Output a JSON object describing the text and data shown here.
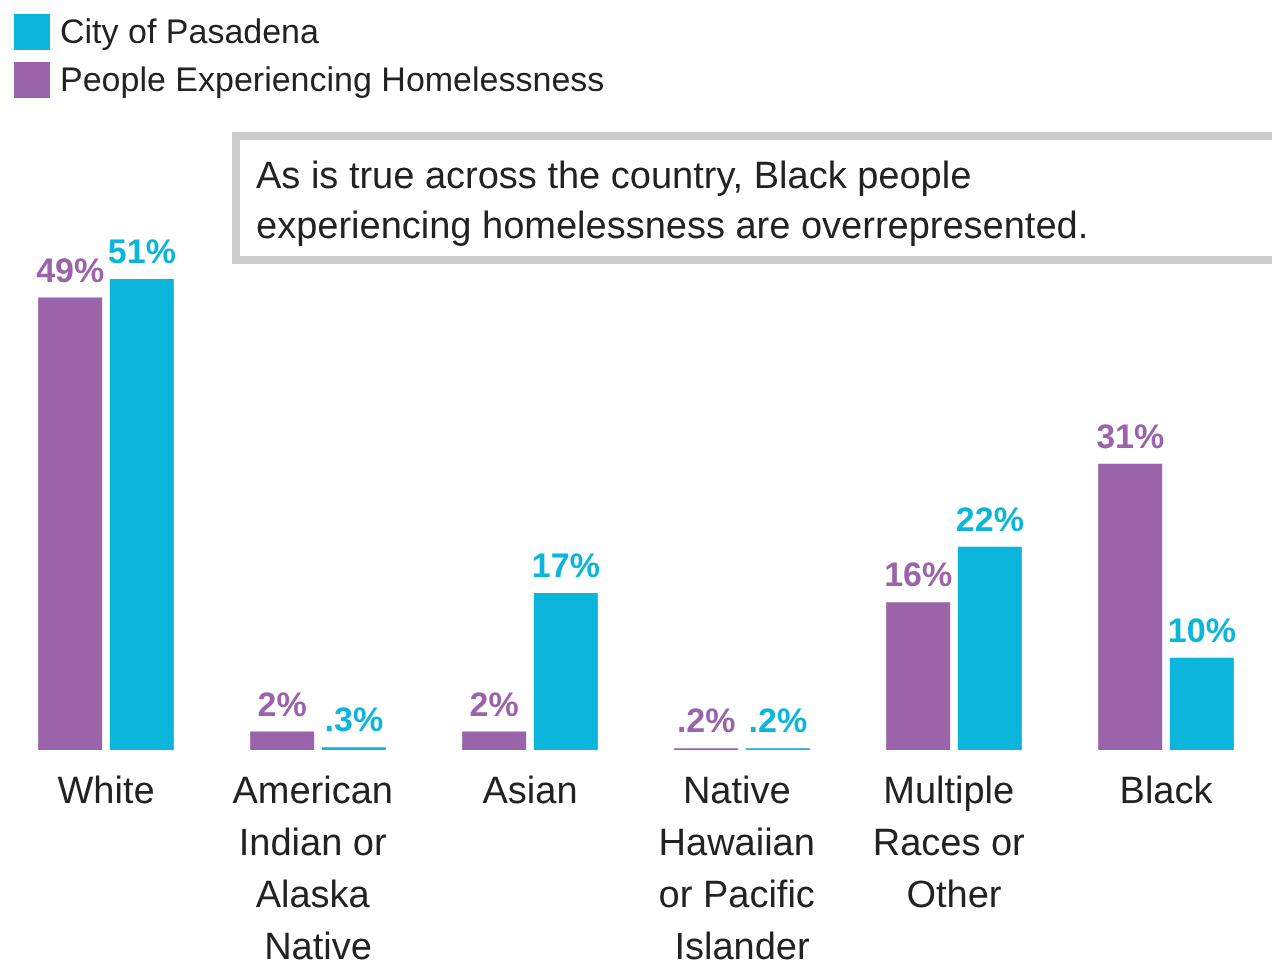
{
  "chart_data": {
    "type": "bar",
    "categories": [
      "White",
      "American Indian or Alaska Native",
      "Asian",
      "Native Hawaiian or Pacific Islander",
      "Multiple Races or Other",
      "Black"
    ],
    "series": [
      {
        "name": "People Experiencing Homelessness",
        "color": "#9b64aa",
        "values": [
          49,
          2,
          2,
          0.2,
          16,
          31
        ],
        "value_labels": [
          "49%",
          "2%",
          "2%",
          ".2%",
          "16%",
          "31%"
        ]
      },
      {
        "name": "City of Pasadena",
        "color": "#0bb5dc",
        "values": [
          51,
          0.3,
          17,
          0.2,
          22,
          10
        ],
        "value_labels": [
          "51%",
          ".3%",
          "17%",
          ".2%",
          "22%",
          "10%"
        ]
      }
    ],
    "legend": "top left",
    "annotations": [
      "As is true across the country, Black people experiencing homelessness are overrepresented."
    ]
  }
}
